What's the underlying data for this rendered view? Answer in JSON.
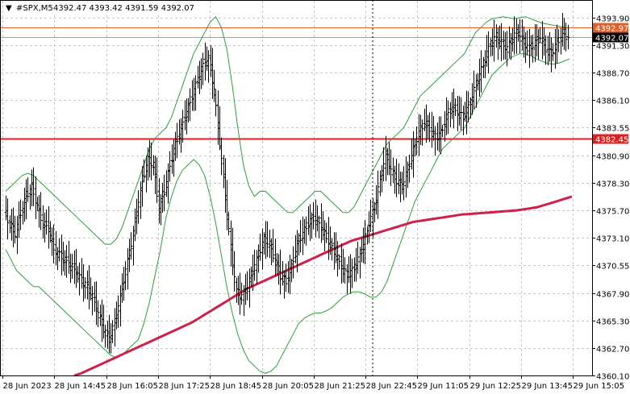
{
  "header": {
    "symbol_label": "#SPX,M5",
    "ohlc_label": "4392.47 4393.42 4391.59 4392.07"
  },
  "chart_data": {
    "type": "line",
    "title": "#SPX,M5",
    "ylim": [
      4360.1,
      4395.5
    ],
    "yticks": [
      "4393.90",
      "4391.30",
      "4388.70",
      "4386.10",
      "4383.55",
      "4380.90",
      "4378.30",
      "4375.70",
      "4373.10",
      "4370.55",
      "4367.90",
      "4365.30",
      "4362.70",
      "4360.10"
    ],
    "xticks": [
      "28 Jun 2023",
      "28 Jun 14:45",
      "28 Jun 16:05",
      "28 Jun 17:25",
      "28 Jun 18:45",
      "28 Jun 20:05",
      "28 Jun 21:25",
      "28 Jun 22:45",
      "29 Jun 11:05",
      "29 Jun 12:25",
      "29 Jun 13:45",
      "29 Jun 15:05"
    ],
    "grid": true,
    "levels": [
      {
        "label": "4392.97",
        "value": 4392.97,
        "color": "#e0602a"
      },
      {
        "label": "4382.45",
        "value": 4382.45,
        "color": "#e02020"
      },
      {
        "label": "4392.07",
        "value": 4392.07,
        "color": "#000000"
      }
    ],
    "session_divider_after_tick": "28 Jun 22:45",
    "series": [
      {
        "name": "price",
        "kind": "candlestick-ohlc",
        "color": "#000000",
        "values": [
          4375.5,
          4374.5,
          4373.5,
          4375.5,
          4377.0,
          4378.0,
          4376.0,
          4374.5,
          4374.0,
          4372.0,
          4371.5,
          4371.0,
          4370.5,
          4370.0,
          4369.0,
          4368.5,
          4367.5,
          4366.0,
          4364.5,
          4363.5,
          4365.0,
          4367.5,
          4370.0,
          4372.5,
          4375.5,
          4378.5,
          4380.5,
          4380.0,
          4376.0,
          4377.5,
          4380.0,
          4382.0,
          4383.5,
          4385.0,
          4386.5,
          4388.0,
          4389.5,
          4390.0,
          4387.0,
          4382.0,
          4377.0,
          4372.0,
          4368.0,
          4367.5,
          4368.5,
          4370.0,
          4371.5,
          4373.0,
          4372.5,
          4371.0,
          4369.5,
          4369.0,
          4370.5,
          4372.5,
          4373.5,
          4374.5,
          4375.0,
          4374.5,
          4373.5,
          4372.5,
          4371.5,
          4370.5,
          4369.5,
          4370.0,
          4371.0,
          4372.5,
          4374.5,
          4376.0,
          4378.5,
          4381.0,
          4379.5,
          4378.5,
          4378.0,
          4379.5,
          4381.5,
          4383.0,
          4384.0,
          4383.5,
          4382.5,
          4383.0,
          4384.5,
          4385.5,
          4385.0,
          4384.5,
          4385.5,
          4387.0,
          4388.5,
          4390.0,
          4391.5,
          4392.0,
          4391.5,
          4391.0,
          4392.0,
          4392.5,
          4391.5,
          4391.0,
          4391.5,
          4392.0,
          4391.0,
          4390.5,
          4391.5,
          4392.5,
          4392.0
        ]
      },
      {
        "name": "bollinger-upper",
        "color": "#2e9e3e",
        "values": [
          4377.5,
          4378.0,
          4378.5,
          4379.0,
          4379.2,
          4379.0,
          4378.5,
          4378.0,
          4377.5,
          4377.0,
          4376.5,
          4376.0,
          4375.5,
          4375.0,
          4374.5,
          4374.0,
          4373.5,
          4373.0,
          4372.5,
          4372.5,
          4373.0,
          4374.0,
          4375.5,
          4377.0,
          4378.5,
          4380.0,
          4381.5,
          4382.5,
          4383.0,
          4383.5,
          4384.5,
          4386.0,
          4387.5,
          4389.0,
          4390.5,
          4391.5,
          4392.5,
          4393.5,
          4394.0,
          4393.0,
          4391.0,
          4387.5,
          4383.5,
          4380.0,
          4378.0,
          4377.0,
          4377.5,
          4377.5,
          4377.0,
          4376.5,
          4376.0,
          4375.5,
          4375.5,
          4376.0,
          4376.5,
          4377.0,
          4377.5,
          4377.5,
          4377.0,
          4376.5,
          4376.0,
          4375.5,
          4375.5,
          4376.0,
          4377.0,
          4378.0,
          4379.0,
          4380.0,
          4381.0,
          4382.0,
          4382.5,
          4383.0,
          4383.5,
          4384.5,
          4385.5,
          4386.5,
          4387.0,
          4387.5,
          4388.0,
          4388.5,
          4389.0,
          4389.5,
          4390.0,
          4390.5,
          4391.5,
          4392.5,
          4393.0,
          4393.5,
          4393.8,
          4393.9,
          4394.0,
          4393.9,
          4393.8,
          4393.9,
          4394.0,
          4393.8,
          4393.6,
          4393.4,
          4393.3,
          4393.2,
          4393.1,
          4393.0,
          4392.9
        ]
      },
      {
        "name": "bollinger-lower",
        "color": "#2e9e3e",
        "values": [
          4372.0,
          4371.0,
          4370.0,
          4369.5,
          4369.0,
          4368.5,
          4368.5,
          4368.0,
          4367.5,
          4367.0,
          4366.5,
          4366.0,
          4365.5,
          4365.0,
          4364.5,
          4364.0,
          4363.5,
          4363.0,
          4362.5,
          4362.0,
          4361.8,
          4362.0,
          4362.5,
          4363.0,
          4363.5,
          4365.0,
          4367.0,
          4369.5,
          4372.0,
          4375.0,
          4377.0,
          4378.5,
          4379.5,
          4380.0,
          4380.5,
          4380.0,
          4379.0,
          4377.0,
          4374.5,
          4371.5,
          4368.5,
          4366.0,
          4364.0,
          4362.5,
          4361.5,
          4361.0,
          4360.5,
          4360.3,
          4360.5,
          4361.0,
          4362.0,
          4363.0,
          4364.0,
          4365.0,
          4365.5,
          4365.8,
          4366.0,
          4366.0,
          4366.2,
          4366.5,
          4367.0,
          4367.5,
          4367.8,
          4368.0,
          4368.0,
          4367.8,
          4367.5,
          4367.5,
          4368.0,
          4369.0,
          4370.5,
          4372.0,
          4373.5,
          4375.0,
          4376.5,
          4377.5,
          4378.5,
          4379.5,
          4380.5,
          4381.5,
          4382.0,
          4382.5,
          4383.0,
          4383.5,
          4384.5,
          4385.5,
          4386.5,
          4387.5,
          4388.5,
          4389.0,
          4389.5,
          4390.0,
          4390.3,
          4390.5,
          4390.5,
          4390.3,
          4390.0,
          4389.8,
          4389.6,
          4389.5,
          4389.6,
          4389.8,
          4390.0
        ]
      },
      {
        "name": "sma-200",
        "color": "#d0204a",
        "values": [
          4360.1,
          4360.3,
          4360.6,
          4360.9,
          4361.2,
          4361.5,
          4361.8,
          4362.1,
          4362.4,
          4362.7,
          4363.0,
          4363.3,
          4363.6,
          4363.9,
          4364.2,
          4364.5,
          4364.8,
          4365.1,
          4365.5,
          4365.9,
          4366.3,
          4366.7,
          4367.1,
          4367.5,
          4367.9,
          4368.3,
          4368.6,
          4368.9,
          4369.2,
          4369.5,
          4369.8,
          4370.1,
          4370.4,
          4370.7,
          4371.0,
          4371.3,
          4371.6,
          4371.9,
          4372.2,
          4372.5,
          4372.8,
          4373.0,
          4373.2,
          4373.4,
          4373.6,
          4373.8,
          4374.0,
          4374.2,
          4374.4,
          4374.6,
          4374.7,
          4374.8,
          4374.9,
          4375.0,
          4375.1,
          4375.2,
          4375.3,
          4375.35,
          4375.4,
          4375.45,
          4375.5,
          4375.55,
          4375.6,
          4375.65,
          4375.7,
          4375.8,
          4375.9,
          4376.0,
          4376.2,
          4376.4,
          4376.6,
          4376.8,
          4377.0
        ]
      }
    ]
  }
}
